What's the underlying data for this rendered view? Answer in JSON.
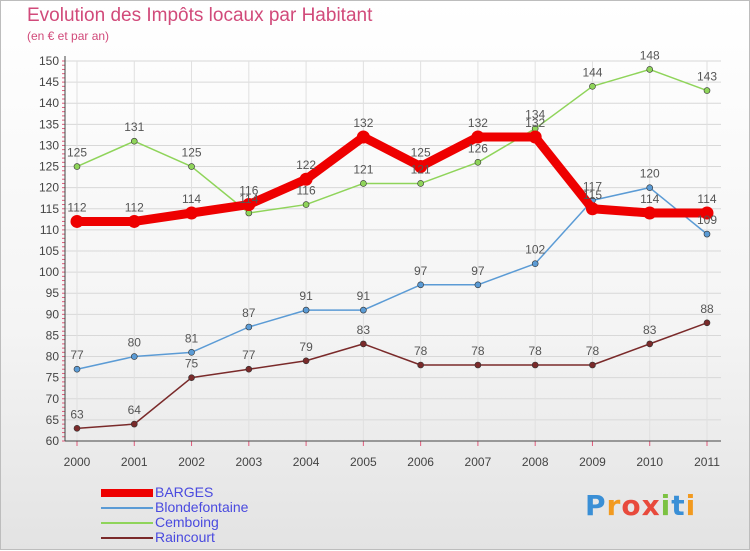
{
  "chart_data": {
    "type": "line",
    "title": "Evolution des Impôts locaux par Habitant",
    "subtitle": "(en € et par an)",
    "xlabel": "",
    "ylabel": "",
    "ylim": [
      60,
      150
    ],
    "yticks": [
      60,
      65,
      70,
      75,
      80,
      85,
      90,
      95,
      100,
      105,
      110,
      115,
      120,
      125,
      130,
      135,
      140,
      145,
      150
    ],
    "categories": [
      "2000",
      "2001",
      "2002",
      "2003",
      "2004",
      "2005",
      "2006",
      "2007",
      "2008",
      "2009",
      "2010",
      "2011"
    ],
    "series": [
      {
        "name": "BARGES",
        "color": "#ee0000",
        "values": [
          112,
          112,
          114,
          116,
          122,
          132,
          125,
          132,
          132,
          115,
          114,
          114
        ]
      },
      {
        "name": "Blondefontaine",
        "color": "#5b9bd5",
        "values": [
          77,
          80,
          81,
          87,
          91,
          91,
          97,
          97,
          102,
          117,
          120,
          109
        ]
      },
      {
        "name": "Cemboing",
        "color": "#8fd45a",
        "values": [
          125,
          131,
          125,
          114,
          116,
          121,
          121,
          126,
          134,
          144,
          148,
          143
        ]
      },
      {
        "name": "Raincourt",
        "color": "#7a2a2a",
        "values": [
          63,
          64,
          75,
          77,
          79,
          83,
          78,
          78,
          78,
          78,
          83,
          88
        ]
      }
    ],
    "legend_position": "bottom-left",
    "grid": true
  },
  "branding": {
    "logo_letters": [
      "P",
      "r",
      "o",
      "x",
      "i",
      "t",
      "i"
    ]
  }
}
